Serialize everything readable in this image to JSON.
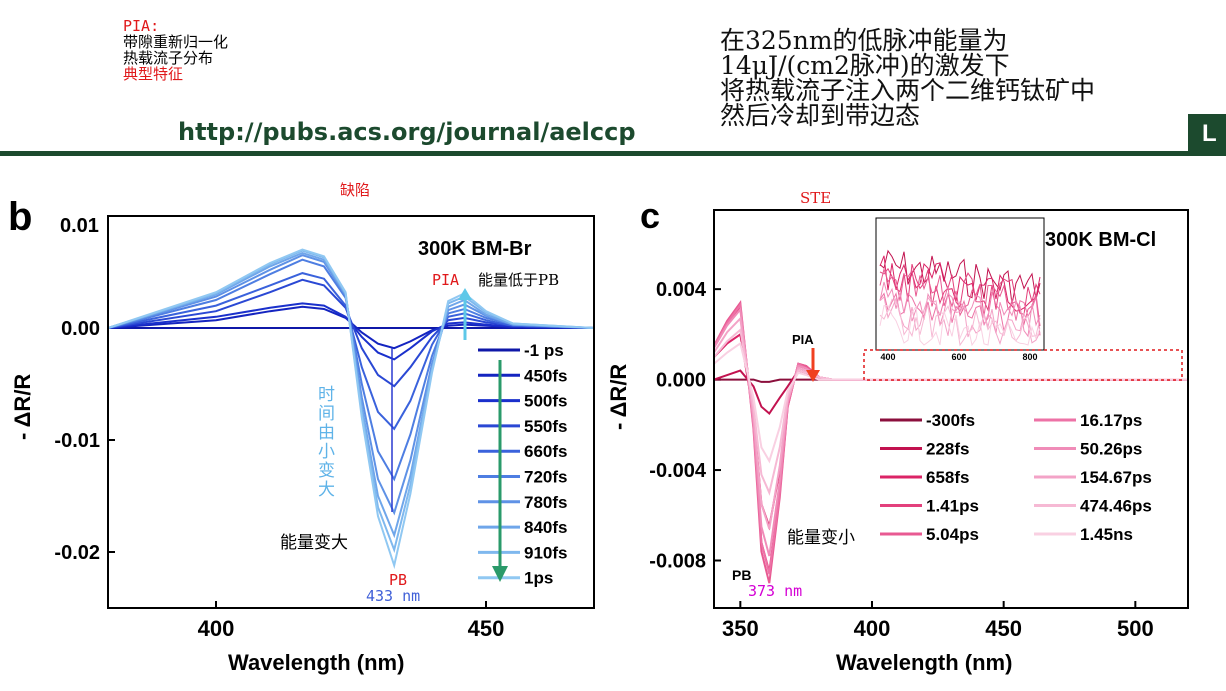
{
  "header": {
    "notes": [
      "PIA:",
      "带隙重新归一化",
      "热载流子分布",
      "典型特征"
    ],
    "url": "http://pubs.acs.org/journal/aelccp",
    "description": [
      "在325nm的低脉冲能量为",
      "14μJ/(cm2脉冲)的激发下",
      "将热载流子注入两个二维钙钛矿中",
      "然后冷却到带边态"
    ],
    "edge_letter": "L",
    "rule_color": "#1c4a2e"
  },
  "chart_data": [
    {
      "type": "line",
      "panel_letter": "b",
      "annotation_title": "缺陷",
      "title": "300K BM-Br",
      "xlabel": "Wavelength (nm)",
      "ylabel": "- ΔR/R",
      "xlim": [
        380,
        470
      ],
      "ylim": [
        -0.025,
        0.01
      ],
      "xticks": [
        "400",
        "450"
      ],
      "yticks": [
        "0.01",
        "0.00",
        "-0.01",
        "-0.02"
      ],
      "x": [
        380,
        400,
        410,
        416,
        420,
        424,
        427,
        430,
        433,
        436,
        440,
        443,
        446,
        450,
        455,
        470
      ],
      "series": [
        {
          "name": "-1 ps",
          "color": "#0f18a8",
          "values": [
            0,
            0,
            0,
            0,
            0,
            0,
            0,
            0,
            0,
            0,
            0,
            0,
            0,
            0,
            0,
            0
          ]
        },
        {
          "name": "450fs",
          "color": "#1424c0",
          "values": [
            0,
            0.0007,
            0.0015,
            0.0019,
            0.0017,
            0.0009,
            -0.0004,
            -0.0014,
            -0.0018,
            -0.0012,
            -0.0002,
            0.0002,
            0.0003,
            0.0002,
            0.0001,
            0
          ]
        },
        {
          "name": "500fs",
          "color": "#1a30cc",
          "values": [
            0,
            0.001,
            0.0018,
            0.0022,
            0.002,
            0.001,
            -0.0008,
            -0.0022,
            -0.0028,
            -0.0018,
            -0.0003,
            0.0004,
            0.0005,
            0.0003,
            0.0001,
            0
          ]
        },
        {
          "name": "550fs",
          "color": "#2a48d4",
          "values": [
            0,
            0.0015,
            0.0032,
            0.0043,
            0.0038,
            0.0018,
            -0.0018,
            -0.0042,
            -0.0052,
            -0.0035,
            -0.0008,
            0.0007,
            0.0009,
            0.0005,
            0.0002,
            0
          ]
        },
        {
          "name": "660fs",
          "color": "#3a62dc",
          "values": [
            0,
            0.002,
            0.0038,
            0.0049,
            0.0044,
            0.002,
            -0.0035,
            -0.0075,
            -0.009,
            -0.0065,
            -0.0015,
            0.001,
            0.0013,
            0.0007,
            0.0002,
            0
          ]
        },
        {
          "name": "720fs",
          "color": "#4e7ee2",
          "values": [
            0,
            0.0025,
            0.0048,
            0.0061,
            0.0055,
            0.0027,
            -0.005,
            -0.011,
            -0.0135,
            -0.0095,
            -0.0025,
            0.0013,
            0.0017,
            0.0009,
            0.0003,
            0
          ]
        },
        {
          "name": "780fs",
          "color": "#5f92e6",
          "values": [
            0,
            0.0028,
            0.0052,
            0.0065,
            0.0059,
            0.0029,
            -0.0062,
            -0.0135,
            -0.0165,
            -0.0118,
            -0.0032,
            0.0016,
            0.0021,
            0.0011,
            0.0003,
            0
          ]
        },
        {
          "name": "840fs",
          "color": "#6fa6ea",
          "values": [
            0,
            0.003,
            0.0055,
            0.0067,
            0.0061,
            0.003,
            -0.007,
            -0.015,
            -0.0185,
            -0.0132,
            -0.0036,
            0.0019,
            0.0025,
            0.0012,
            0.0003,
            0
          ]
        },
        {
          "name": "910fs",
          "color": "#7fb8ee",
          "values": [
            0,
            0.0031,
            0.0057,
            0.0069,
            0.0063,
            0.0031,
            -0.0076,
            -0.016,
            -0.0198,
            -0.014,
            -0.0038,
            0.0022,
            0.0028,
            0.0014,
            0.0004,
            0
          ]
        },
        {
          "name": "1ps",
          "color": "#90c8f2",
          "values": [
            0,
            0.0032,
            0.0058,
            0.007,
            0.0064,
            0.0032,
            -0.008,
            -0.0168,
            -0.0212,
            -0.0148,
            -0.004,
            0.0024,
            0.0031,
            0.0015,
            0.0004,
            0
          ]
        }
      ],
      "annotations": {
        "pia": "PIA",
        "pia_note": "能量低于PB",
        "time_note": "时间由小变大",
        "energy_note": "能量变大",
        "pb": "PB",
        "pb_wavelength": "433 nm"
      }
    },
    {
      "type": "line",
      "panel_letter": "c",
      "annotation_title": "STE",
      "title": "300K BM-Cl",
      "xlabel": "Wavelength (nm)",
      "ylabel": "- ΔR/R",
      "xlim": [
        340,
        520
      ],
      "ylim": [
        -0.0101,
        0.0075
      ],
      "xticks": [
        "350",
        "400",
        "450",
        "500"
      ],
      "yticks": [
        "0.004",
        "0.000",
        "-0.004",
        "-0.008"
      ],
      "x": [
        340,
        345,
        350,
        355,
        358,
        361,
        365,
        368,
        372,
        375,
        380,
        385,
        390,
        400,
        450,
        520
      ],
      "series": [
        {
          "name": "-300fs",
          "color": "#8b0f3c",
          "values": [
            0,
            0,
            0,
            0,
            -0.0001,
            -0.0001,
            0,
            0,
            0,
            0,
            0,
            0,
            0,
            0,
            0,
            0
          ]
        },
        {
          "name": "228fs",
          "color": "#c2124f",
          "values": [
            0,
            0.0002,
            0.0004,
            -0.0003,
            -0.0012,
            -0.0015,
            -0.0008,
            -0.0003,
            0.0004,
            0.0003,
            0,
            0,
            0,
            0,
            0,
            0
          ]
        },
        {
          "name": "658fs",
          "color": "#db2366",
          "values": [
            0.001,
            0.0016,
            0.002,
            -0.0015,
            -0.0055,
            -0.0065,
            -0.004,
            -0.001,
            0.0006,
            0.0005,
            0.0001,
            0,
            0,
            0,
            0,
            0
          ]
        },
        {
          "name": "1.41ps",
          "color": "#e3407c",
          "values": [
            0.0015,
            0.0025,
            0.0032,
            -0.002,
            -0.0072,
            -0.0085,
            -0.005,
            -0.0012,
            0.0007,
            0.0006,
            0.0001,
            0,
            0,
            0,
            0,
            0
          ]
        },
        {
          "name": "5.04ps",
          "color": "#e85a92",
          "values": [
            0.0015,
            0.0026,
            0.0034,
            -0.0022,
            -0.0076,
            -0.009,
            -0.0052,
            -0.0012,
            0.0007,
            0.0006,
            0.0001,
            0,
            0,
            0,
            0,
            0
          ]
        },
        {
          "name": "16.17ps",
          "color": "#ed72a6",
          "values": [
            0.0015,
            0.0025,
            0.0033,
            -0.0021,
            -0.0072,
            -0.0086,
            -0.005,
            -0.0011,
            0.0007,
            0.0005,
            0.0001,
            0,
            0,
            0,
            0,
            0
          ]
        },
        {
          "name": "50.26ps",
          "color": "#f08cb8",
          "values": [
            0.0014,
            0.0024,
            0.0031,
            -0.0019,
            -0.0065,
            -0.0078,
            -0.0045,
            -0.001,
            0.0006,
            0.0005,
            0.0001,
            0,
            0,
            0,
            0,
            0
          ]
        },
        {
          "name": "154.67ps",
          "color": "#f3a3c7",
          "values": [
            0.0012,
            0.0021,
            0.0027,
            -0.0016,
            -0.0055,
            -0.0066,
            -0.0038,
            -0.0009,
            0.0005,
            0.0004,
            0.0001,
            0,
            0,
            0,
            0,
            0
          ]
        },
        {
          "name": "474.46ps",
          "color": "#f6b9d4",
          "values": [
            0.001,
            0.0017,
            0.0022,
            -0.0012,
            -0.0042,
            -0.005,
            -0.003,
            -0.0007,
            0.0004,
            0.0003,
            0.0001,
            0,
            0,
            0,
            0,
            0
          ]
        },
        {
          "name": "1.45ns",
          "color": "#f9d0e2",
          "values": [
            0.0007,
            0.0012,
            0.0016,
            -0.0008,
            -0.003,
            -0.0036,
            -0.0021,
            -0.0005,
            0.0003,
            0.0002,
            0,
            0,
            0,
            0,
            0,
            0
          ]
        }
      ],
      "annotations": {
        "pia": "PIA",
        "pb": "PB",
        "pb_wavelength": "373 nm",
        "energy_note": "能量变小"
      },
      "inset": {
        "xticks": [
          "400",
          "600",
          "800"
        ]
      }
    }
  ]
}
